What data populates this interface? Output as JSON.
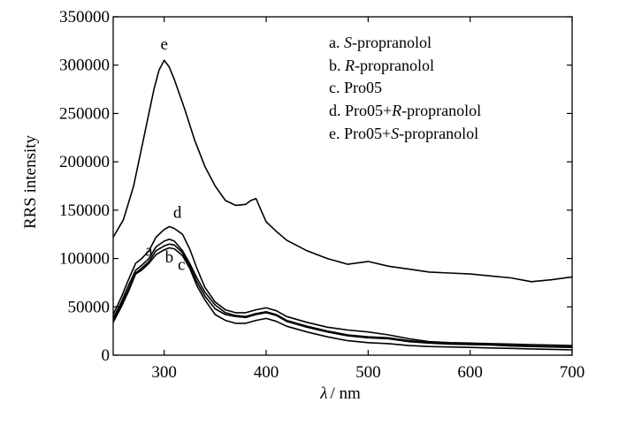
{
  "chart_data": {
    "type": "line",
    "xlabel": {
      "symbol": "λ",
      "unit": "/ nm"
    },
    "ylabel": "RRS intensity",
    "xlim": [
      250,
      700
    ],
    "ylim": [
      0,
      350000
    ],
    "x_ticks": [
      300,
      400,
      500,
      600,
      700
    ],
    "x_tick_labels": [
      "300",
      "400",
      "500",
      "600",
      "700"
    ],
    "y_ticks": [
      0,
      50000,
      100000,
      150000,
      200000,
      250000,
      300000,
      350000
    ],
    "y_tick_labels": [
      "0",
      "50000",
      "100000",
      "150000",
      "200000",
      "250000",
      "300000",
      "350000"
    ],
    "grid": false,
    "legend_position": "top-right",
    "legend": [
      {
        "prefix": "a. ",
        "italic": "S",
        "suffix": "-propranolol"
      },
      {
        "prefix": "b. ",
        "italic": "R",
        "suffix": "-propranolol"
      },
      {
        "prefix": "c. Pro05",
        "italic": "",
        "suffix": ""
      },
      {
        "prefix": "d. Pro05+",
        "italic": "R",
        "suffix": "-propranolol"
      },
      {
        "prefix": "e. Pro05+",
        "italic": "S",
        "suffix": "-propranolol"
      }
    ],
    "series": [
      {
        "name": "a",
        "label_at": [
          285,
          103000
        ],
        "x": [
          250,
          258,
          265,
          272,
          278,
          285,
          292,
          300,
          305,
          310,
          318,
          325,
          332,
          340,
          350,
          360,
          370,
          380,
          390,
          400,
          410,
          420,
          440,
          460,
          480,
          500,
          520,
          540,
          560,
          580,
          600,
          620,
          640,
          660,
          680,
          700
        ],
        "y": [
          38000,
          55000,
          72000,
          88000,
          93000,
          100000,
          112000,
          118000,
          120000,
          118000,
          108000,
          95000,
          80000,
          65000,
          52000,
          44000,
          41000,
          40000,
          43000,
          45000,
          42000,
          36000,
          30000,
          25000,
          21000,
          19000,
          18000,
          15000,
          13000,
          12000,
          11500,
          11000,
          10000,
          9500,
          9000,
          8500
        ]
      },
      {
        "name": "b",
        "label_at": [
          305,
          96000
        ],
        "x": [
          250,
          258,
          265,
          272,
          278,
          285,
          292,
          300,
          305,
          310,
          318,
          325,
          332,
          340,
          350,
          360,
          370,
          380,
          390,
          400,
          410,
          420,
          440,
          460,
          480,
          500,
          520,
          540,
          560,
          580,
          600,
          620,
          640,
          660,
          680,
          700
        ],
        "y": [
          36000,
          52000,
          68000,
          85000,
          90000,
          97000,
          108000,
          113000,
          115000,
          114000,
          106000,
          92000,
          76000,
          61000,
          48000,
          42000,
          40000,
          39000,
          42000,
          44000,
          41000,
          35000,
          29000,
          24000,
          20000,
          18000,
          17000,
          14000,
          12500,
          11500,
          11000,
          10500,
          9500,
          9000,
          8500,
          8000
        ]
      },
      {
        "name": "c",
        "label_at": [
          317,
          88000
        ],
        "x": [
          250,
          258,
          265,
          272,
          278,
          285,
          292,
          300,
          305,
          310,
          318,
          325,
          332,
          340,
          350,
          360,
          370,
          380,
          390,
          400,
          410,
          420,
          440,
          460,
          480,
          500,
          520,
          540,
          560,
          580,
          600,
          620,
          640,
          660,
          680,
          700
        ],
        "y": [
          34000,
          50000,
          66000,
          84000,
          88000,
          95000,
          104000,
          109000,
          111000,
          110000,
          103000,
          90000,
          72000,
          57000,
          42000,
          36000,
          33000,
          33000,
          36000,
          38000,
          35000,
          30000,
          24000,
          19000,
          15000,
          13000,
          12000,
          10000,
          9000,
          8500,
          8000,
          7500,
          7000,
          6500,
          6000,
          5500
        ]
      },
      {
        "name": "d",
        "label_at": [
          313,
          142000
        ],
        "x": [
          250,
          258,
          265,
          272,
          278,
          285,
          292,
          300,
          305,
          310,
          318,
          325,
          332,
          340,
          350,
          360,
          370,
          380,
          390,
          400,
          410,
          420,
          440,
          460,
          480,
          500,
          520,
          540,
          560,
          580,
          600,
          620,
          640,
          660,
          680,
          700
        ],
        "y": [
          42000,
          60000,
          78000,
          95000,
          100000,
          108000,
          122000,
          130000,
          133000,
          131000,
          125000,
          110000,
          90000,
          70000,
          55000,
          47000,
          44000,
          44000,
          47000,
          49000,
          46000,
          40000,
          34000,
          29000,
          26000,
          24000,
          21000,
          17000,
          14000,
          13000,
          12500,
          12000,
          11500,
          11000,
          10500,
          10000
        ]
      },
      {
        "name": "e",
        "label_at": [
          300,
          316000
        ],
        "x": [
          250,
          260,
          270,
          280,
          290,
          295,
          300,
          305,
          310,
          320,
          330,
          340,
          350,
          360,
          370,
          380,
          385,
          390,
          395,
          400,
          410,
          420,
          440,
          460,
          480,
          500,
          520,
          540,
          560,
          580,
          600,
          620,
          640,
          660,
          680,
          700
        ],
        "y": [
          122000,
          140000,
          175000,
          225000,
          275000,
          295000,
          305000,
          298000,
          285000,
          255000,
          222000,
          195000,
          175000,
          160000,
          155000,
          156000,
          160000,
          162000,
          150000,
          138000,
          128000,
          119000,
          108000,
          100000,
          94000,
          97000,
          92000,
          89000,
          86000,
          85000,
          84000,
          82000,
          80000,
          76000,
          78000,
          81000
        ]
      }
    ]
  }
}
